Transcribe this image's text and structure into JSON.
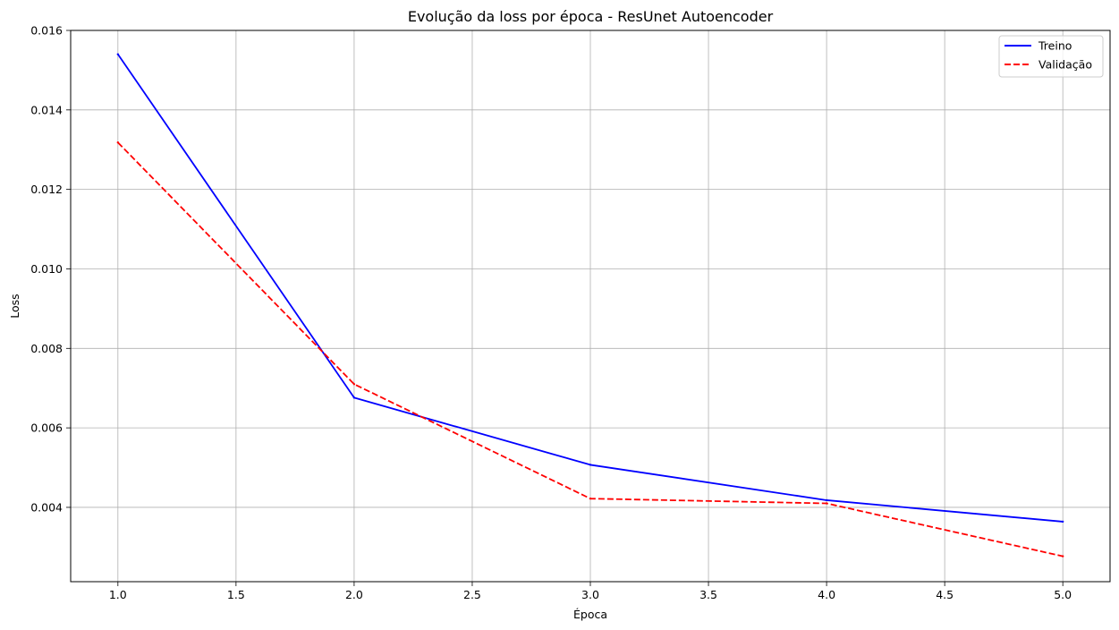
{
  "chart_data": {
    "type": "line",
    "title": "Evolução da loss por época - ResUnet Autoencoder",
    "xlabel": "Época",
    "ylabel": "Loss",
    "x": [
      1.0,
      2.0,
      3.0,
      4.0,
      5.0
    ],
    "xlim": [
      0.8,
      5.2
    ],
    "ylim": [
      0.00213,
      0.016
    ],
    "x_ticks": [
      "1.0",
      "1.5",
      "2.0",
      "2.5",
      "3.0",
      "3.5",
      "4.0",
      "4.5",
      "5.0"
    ],
    "y_ticks": [
      "0.004",
      "0.006",
      "0.008",
      "0.010",
      "0.012",
      "0.014",
      "0.016"
    ],
    "grid": true,
    "legend_position": "top-right",
    "series": [
      {
        "name": "Treino",
        "color": "#0000ff",
        "line_style": "solid",
        "values": [
          0.0154,
          0.00676,
          0.00507,
          0.00418,
          0.00364
        ]
      },
      {
        "name": "Validação",
        "color": "#ff0000",
        "line_style": "dashed",
        "values": [
          0.01318,
          0.0071,
          0.00422,
          0.0041,
          0.00277
        ]
      }
    ]
  }
}
